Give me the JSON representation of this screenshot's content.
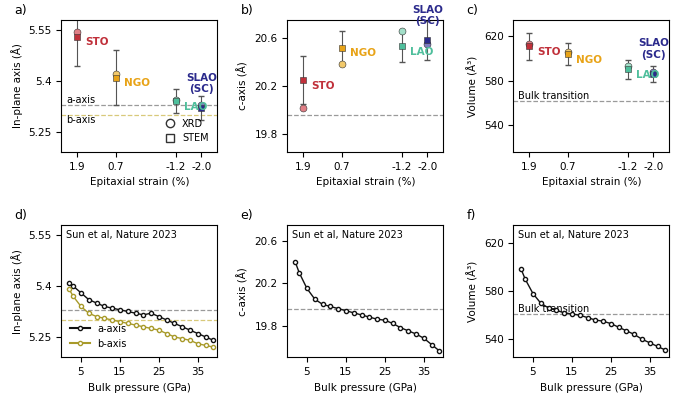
{
  "chart_data": [
    {
      "type": "scatter",
      "panel": "a)",
      "xlabel": "Epitaxial strain (%)",
      "ylabel": "In-plane axis (Å)",
      "xlim": [
        2.4,
        -2.5
      ],
      "ylim": [
        5.19,
        5.58
      ],
      "xticks": [
        1.9,
        0.7,
        -1.2,
        -2.0
      ],
      "yticks": [
        5.25,
        5.4,
        5.55
      ],
      "x": [
        1.9,
        0.7,
        -1.2,
        -2.0
      ],
      "categories": [
        "STO",
        "NGO",
        "LAO",
        "SLAO\n(SC)"
      ],
      "colors": [
        "#c0303a",
        "#e8a317",
        "#4fbf9c",
        "#2b2a8c"
      ],
      "series": [
        {
          "name": "XRD",
          "marker": "o",
          "colors": [
            "#e07f86",
            "#f2c96b",
            "#a3dfc9",
            "#7d7cbf"
          ],
          "values": [
            5.545,
            5.42,
            5.345,
            5.33
          ]
        },
        {
          "name": "STEM",
          "marker": "s",
          "values": [
            5.53,
            5.41,
            5.34,
            5.32
          ],
          "errors": [
            0.085,
            0.08,
            0.035,
            0.035
          ]
        }
      ],
      "reference_lines": [
        {
          "value": 5.33,
          "label": "a-axis",
          "color": "#9a9a9a"
        },
        {
          "value": 5.3,
          "label": "b-axis",
          "color": "#d8c97a"
        }
      ],
      "legend": "lower right"
    },
    {
      "type": "scatter",
      "panel": "b)",
      "xlabel": "Epitaxial strain (%)",
      "ylabel": "c-axis (Å)",
      "xlim": [
        2.4,
        -2.5
      ],
      "ylim": [
        19.65,
        20.75
      ],
      "xticks": [
        1.9,
        0.7,
        -1.2,
        -2.0
      ],
      "yticks": [
        19.8,
        20.2,
        20.6
      ],
      "x": [
        1.9,
        0.7,
        -1.2,
        -2.0
      ],
      "categories": [
        "STO",
        "NGO",
        "LAO",
        "SLAO\n(SC)"
      ],
      "colors": [
        "#c0303a",
        "#e8a317",
        "#4fbf9c",
        "#2b2a8c"
      ],
      "series": [
        {
          "name": "XRD",
          "marker": "o",
          "colors": [
            "#e07f86",
            "#f2c96b",
            "#a3dfc9",
            "#7d7cbf"
          ],
          "values": [
            20.02,
            20.38,
            20.66,
            20.55
          ]
        },
        {
          "name": "STEM",
          "marker": "s",
          "values": [
            20.25,
            20.52,
            20.53,
            20.58
          ],
          "errors": [
            0.2,
            0.14,
            0.13,
            0.16
          ]
        }
      ],
      "reference_lines": [
        {
          "value": 19.96,
          "color": "#9a9a9a"
        }
      ]
    },
    {
      "type": "scatter",
      "panel": "c)",
      "xlabel": "Epitaxial strain (%)",
      "ylabel": "Volume (Å³)",
      "xlim": [
        2.4,
        -2.5
      ],
      "ylim": [
        515,
        635
      ],
      "xticks": [
        1.9,
        0.7,
        -1.2,
        -2.0
      ],
      "yticks": [
        540,
        580,
        620
      ],
      "x": [
        1.9,
        0.7,
        -1.2,
        -2.0
      ],
      "categories": [
        "STO",
        "NGO",
        "LAO",
        "SLAO\n(SC)"
      ],
      "colors": [
        "#c0303a",
        "#e8a317",
        "#4fbf9c",
        "#2b2a8c"
      ],
      "series": [
        {
          "name": "XRD",
          "marker": "o",
          "colors": [
            "#e07f86",
            "#f2c96b",
            "#a3dfc9",
            "#7d7cbf"
          ],
          "values": [
            613,
            606,
            593,
            588
          ]
        },
        {
          "name": "STEM",
          "marker": "s",
          "values": [
            611,
            604,
            590,
            586
          ],
          "errors": [
            12,
            10,
            9,
            7
          ]
        }
      ],
      "reference_lines": [
        {
          "value": 561,
          "label": "Bulk transition",
          "color": "#9a9a9a"
        }
      ]
    },
    {
      "type": "line",
      "panel": "d)",
      "title": "Sun et al, Nature 2023",
      "xlabel": "Bulk pressure (GPa)",
      "ylabel": "In-plane axis (Å)",
      "xlim": [
        0,
        40
      ],
      "ylim": [
        5.19,
        5.58
      ],
      "xticks": [
        5,
        15,
        25,
        35
      ],
      "yticks": [
        5.25,
        5.4,
        5.55
      ],
      "x": [
        2,
        3,
        5,
        7,
        9,
        11,
        13,
        15,
        17,
        19,
        21,
        23,
        25,
        27,
        29,
        31,
        33,
        35,
        37,
        39
      ],
      "series": [
        {
          "name": "a-axis",
          "color": "#111111",
          "marker": "o",
          "values": [
            5.41,
            5.4,
            5.38,
            5.36,
            5.35,
            5.34,
            5.335,
            5.33,
            5.325,
            5.32,
            5.315,
            5.32,
            5.31,
            5.3,
            5.29,
            5.28,
            5.27,
            5.26,
            5.25,
            5.24
          ]
        },
        {
          "name": "b-axis",
          "color": "#a89a2a",
          "marker": "o",
          "values": [
            5.39,
            5.37,
            5.34,
            5.32,
            5.31,
            5.305,
            5.3,
            5.295,
            5.29,
            5.285,
            5.28,
            5.275,
            5.27,
            5.26,
            5.25,
            5.245,
            5.24,
            5.23,
            5.225,
            5.22
          ]
        }
      ],
      "reference_lines": [
        {
          "value": 5.33,
          "color": "#9a9a9a"
        },
        {
          "value": 5.3,
          "color": "#d8c97a"
        }
      ],
      "legend": "lower left"
    },
    {
      "type": "line",
      "panel": "e)",
      "title": "Sun et al, Nature 2023",
      "xlabel": "Bulk pressure (GPa)",
      "ylabel": "c-axis (Å)",
      "xlim": [
        0,
        40
      ],
      "ylim": [
        19.5,
        20.75
      ],
      "xticks": [
        5,
        15,
        25,
        35
      ],
      "yticks": [
        19.8,
        20.2,
        20.6
      ],
      "x": [
        2,
        3,
        5,
        7,
        9,
        11,
        13,
        15,
        17,
        19,
        21,
        23,
        25,
        27,
        29,
        31,
        33,
        35,
        37,
        39
      ],
      "series": [
        {
          "name": "c-axis",
          "color": "#111111",
          "marker": "o",
          "values": [
            20.4,
            20.3,
            20.15,
            20.05,
            20.0,
            19.98,
            19.96,
            19.94,
            19.92,
            19.9,
            19.88,
            19.86,
            19.85,
            19.82,
            19.78,
            19.75,
            19.72,
            19.68,
            19.62,
            19.56
          ]
        }
      ],
      "reference_lines": [
        {
          "value": 19.96,
          "color": "#9a9a9a"
        }
      ]
    },
    {
      "type": "line",
      "panel": "f)",
      "title": "Sun et al, Nature 2023",
      "xlabel": "Bulk pressure (GPa)",
      "ylabel": "Volume (Å³)",
      "xlim": [
        0,
        40
      ],
      "ylim": [
        525,
        635
      ],
      "xticks": [
        5,
        15,
        25,
        35
      ],
      "yticks": [
        540,
        580,
        620
      ],
      "x": [
        2,
        3,
        5,
        7,
        9,
        11,
        13,
        15,
        17,
        19,
        21,
        23,
        25,
        27,
        29,
        31,
        33,
        35,
        37,
        39
      ],
      "series": [
        {
          "name": "Volume",
          "color": "#111111",
          "marker": "o",
          "values": [
            598,
            590,
            578,
            570,
            566,
            564,
            562,
            561,
            560,
            558,
            556,
            555,
            553,
            550,
            547,
            544,
            540,
            537,
            534,
            531
          ]
        }
      ],
      "reference_lines": [
        {
          "value": 561,
          "label": "Bulk transition",
          "color": "#9a9a9a"
        }
      ]
    }
  ]
}
